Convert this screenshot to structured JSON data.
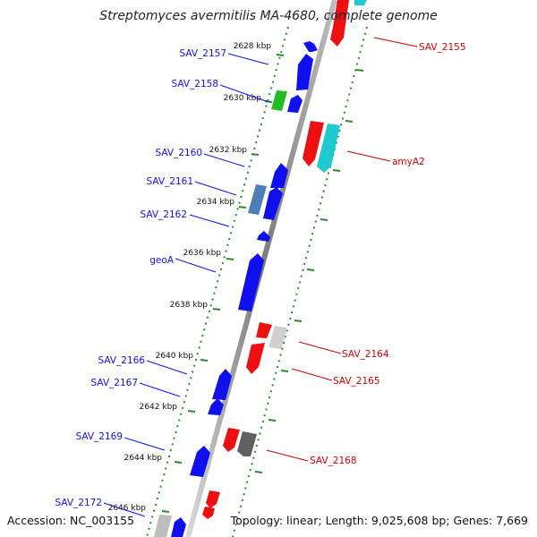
{
  "title": "Streptomyces avermitilis MA-4680, complete genome",
  "footer": {
    "accession": "Accession: NC_003155",
    "summary": "Topology: linear; Length: 9,025,608 bp; Genes: 7,669"
  },
  "kbp_labels": [
    "2628 kbp",
    "2630 kbp",
    "2632 kbp",
    "2634 kbp",
    "2636 kbp",
    "2638 kbp",
    "2640 kbp",
    "2642 kbp",
    "2644 kbp",
    "2646 kbp"
  ],
  "genes": {
    "reverse": [
      "SAV_2157",
      "SAV_2158",
      "SAV_2160",
      "SAV_2161",
      "SAV_2162",
      "geoA",
      "SAV_2166",
      "SAV_2167",
      "SAV_2169",
      "SAV_2172"
    ],
    "forward": [
      "SAV_2155",
      "amyA2",
      "SAV_2164",
      "SAV_2165",
      "SAV_2168"
    ]
  },
  "colors": {
    "reverse_label": "#1010ee",
    "forward_label": "#cc0000",
    "strand_guide": "#2a8a2a",
    "backbone": "#7a7a7a"
  }
}
